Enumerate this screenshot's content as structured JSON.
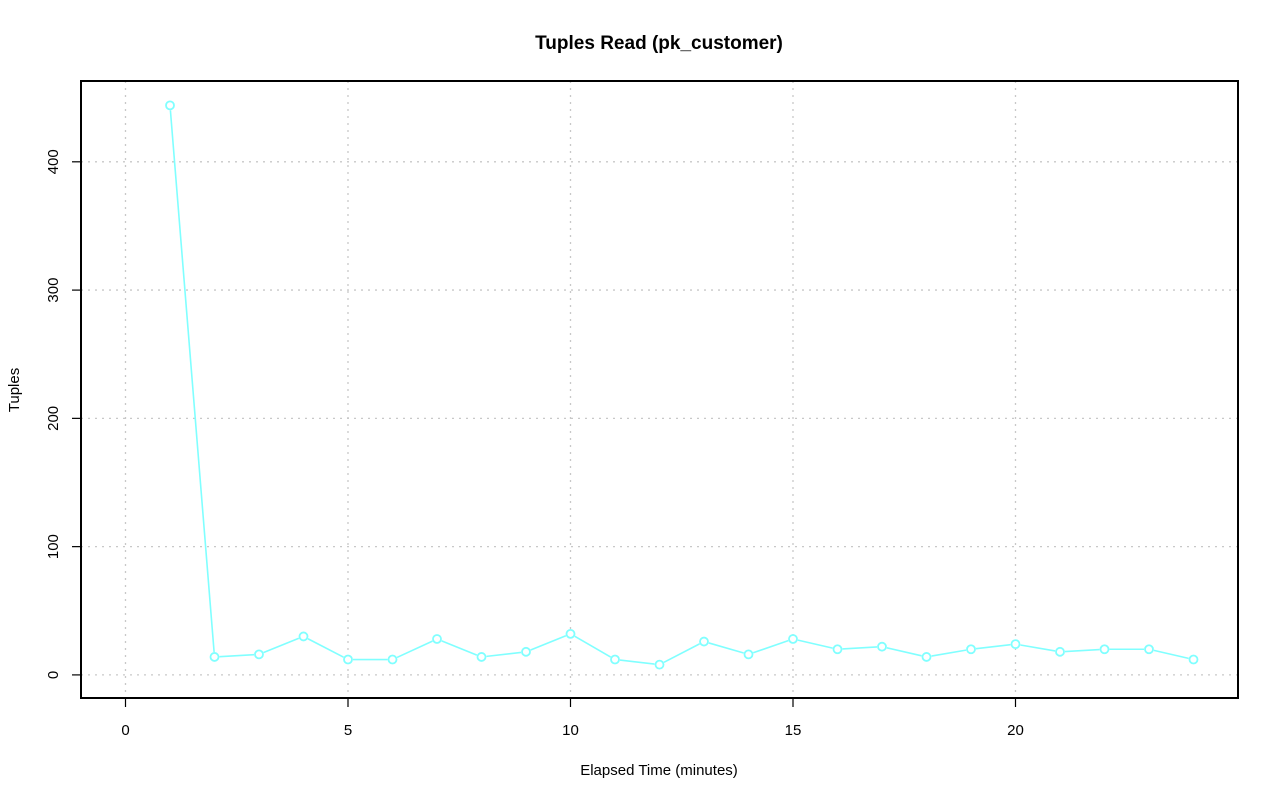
{
  "chart_data": {
    "type": "line",
    "title": "Tuples Read (pk_customer)",
    "xlabel": "Elapsed Time (minutes)",
    "ylabel": "Tuples",
    "xlim": [
      -1,
      25
    ],
    "ylim": [
      -18,
      463
    ],
    "x_ticks": [
      0,
      5,
      10,
      15,
      20
    ],
    "y_ticks": [
      0,
      100,
      200,
      300,
      400
    ],
    "grid": true,
    "legend": "none",
    "series": [
      {
        "color": "#80ffff",
        "marker": "open-circle",
        "x": [
          1,
          2,
          3,
          4,
          5,
          6,
          7,
          8,
          9,
          10,
          11,
          12,
          13,
          14,
          15,
          16,
          17,
          18,
          19,
          20,
          21,
          22,
          23,
          24
        ],
        "y": [
          444,
          14,
          16,
          30,
          12,
          12,
          28,
          14,
          18,
          32,
          12,
          8,
          26,
          16,
          28,
          20,
          22,
          14,
          20,
          24,
          18,
          20,
          20,
          12
        ]
      }
    ]
  }
}
